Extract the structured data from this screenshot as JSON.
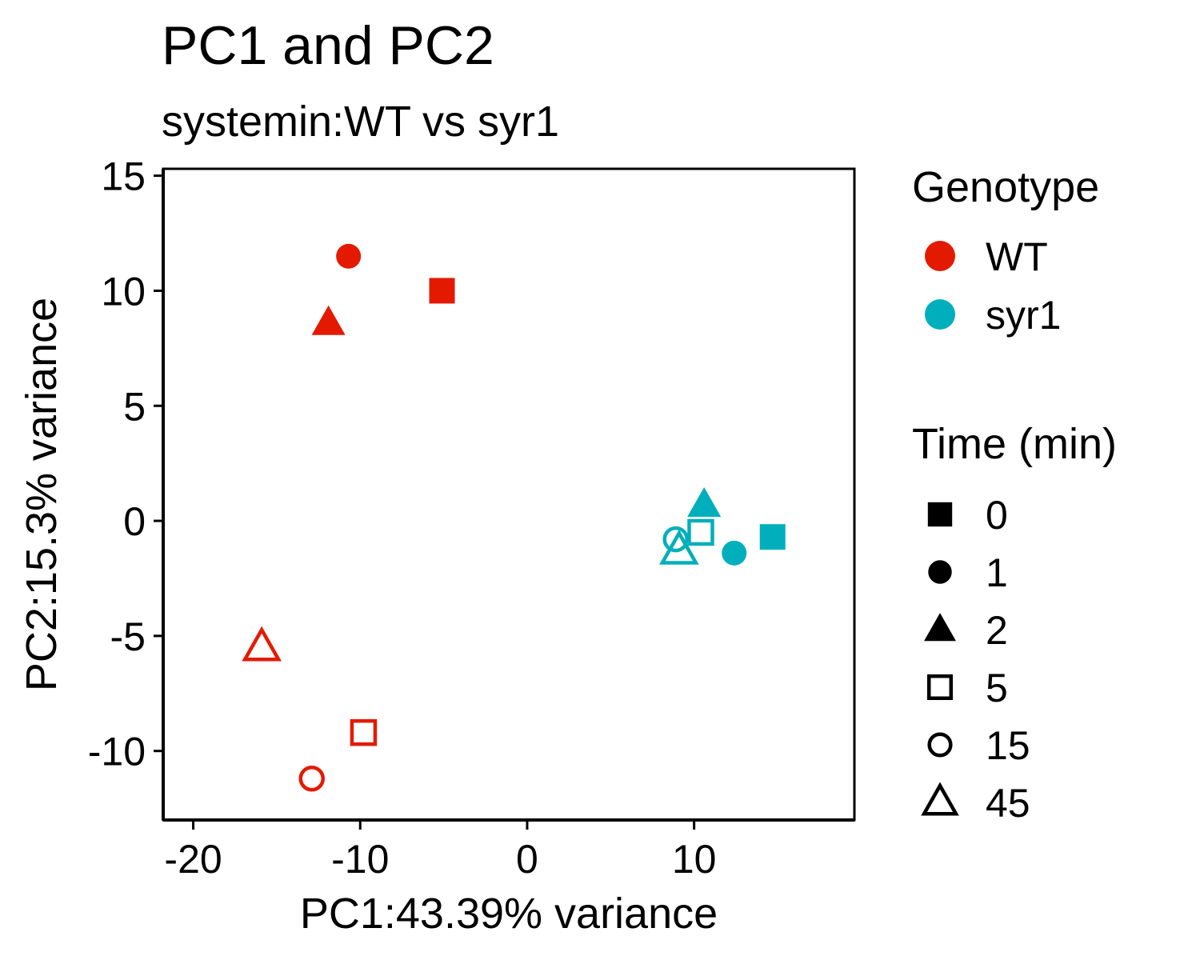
{
  "chart_data": {
    "type": "scatter",
    "title": "PC1 and PC2",
    "subtitle": "systemin:WT vs syr1",
    "xlabel": "PC1:43.39% variance",
    "ylabel": "PC2:15.3% variance",
    "xlim": [
      -21.8,
      19.6
    ],
    "ylim": [
      -13.0,
      15.3
    ],
    "xticks": [
      -20,
      -10,
      0,
      10
    ],
    "xtick_labels": [
      "-20",
      "-10",
      "0",
      "10"
    ],
    "yticks": [
      15,
      10,
      5,
      0,
      -5,
      -10
    ],
    "ytick_labels": [
      "15",
      "10",
      "5",
      "0",
      "-5",
      "-10"
    ],
    "grid": false,
    "legend_position": "right",
    "colors": {
      "WT": "#E31A00",
      "syr1": "#00AFBB"
    },
    "legend_genotype": {
      "title": "Genotype",
      "items": [
        {
          "label": "WT",
          "color": "#E31A00"
        },
        {
          "label": "syr1",
          "color": "#00AFBB"
        }
      ]
    },
    "legend_time": {
      "title": "Time (min)",
      "items": [
        {
          "label": "0",
          "shape": "filled-square"
        },
        {
          "label": "1",
          "shape": "filled-circle"
        },
        {
          "label": "2",
          "shape": "filled-triangle"
        },
        {
          "label": "5",
          "shape": "open-square"
        },
        {
          "label": "15",
          "shape": "open-circle"
        },
        {
          "label": "45",
          "shape": "open-triangle"
        }
      ]
    },
    "points": [
      {
        "genotype": "WT",
        "time": "0",
        "x": -5.1,
        "y": 10.0
      },
      {
        "genotype": "WT",
        "time": "1",
        "x": -10.7,
        "y": 11.5
      },
      {
        "genotype": "WT",
        "time": "2",
        "x": -11.9,
        "y": 8.6
      },
      {
        "genotype": "WT",
        "time": "5",
        "x": -9.8,
        "y": -9.2
      },
      {
        "genotype": "WT",
        "time": "15",
        "x": -12.9,
        "y": -11.2
      },
      {
        "genotype": "WT",
        "time": "45",
        "x": -15.9,
        "y": -5.5
      },
      {
        "genotype": "syr1",
        "time": "0",
        "x": 14.7,
        "y": -0.7
      },
      {
        "genotype": "syr1",
        "time": "1",
        "x": 12.4,
        "y": -1.4
      },
      {
        "genotype": "syr1",
        "time": "2",
        "x": 10.6,
        "y": 0.7
      },
      {
        "genotype": "syr1",
        "time": "5",
        "x": 10.4,
        "y": -0.5
      },
      {
        "genotype": "syr1",
        "time": "15",
        "x": 8.9,
        "y": -0.8
      },
      {
        "genotype": "syr1",
        "time": "45",
        "x": 9.1,
        "y": -1.3
      }
    ]
  }
}
